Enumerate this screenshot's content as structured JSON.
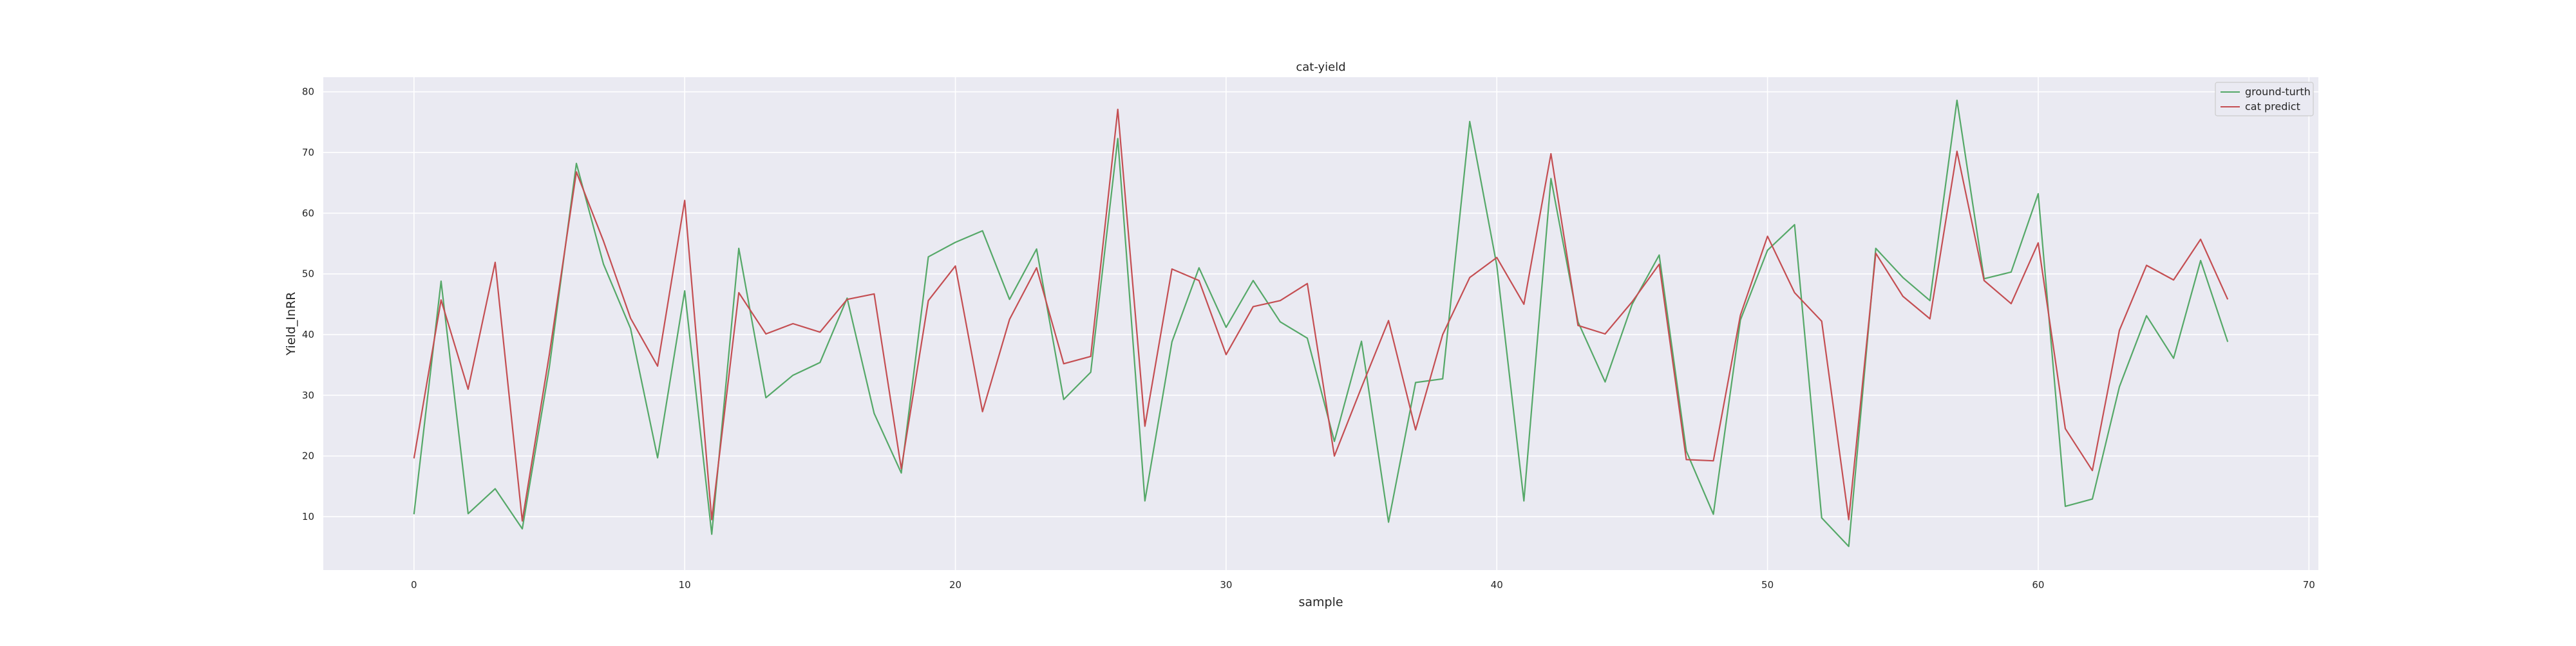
{
  "chart_data": {
    "type": "line",
    "title": "cat-yield",
    "xlabel": "sample",
    "ylabel": "Yield_InRR",
    "xlim": [
      -3.35,
      70.35
    ],
    "ylim": [
      1.2,
      82.4
    ],
    "xticks": [
      0,
      10,
      20,
      30,
      40,
      50,
      60,
      70
    ],
    "yticks": [
      10,
      20,
      30,
      40,
      50,
      60,
      70,
      80
    ],
    "grid": true,
    "legend_position": "top-right",
    "x": [
      0,
      1,
      2,
      3,
      4,
      5,
      6,
      7,
      8,
      9,
      10,
      11,
      12,
      13,
      14,
      15,
      16,
      17,
      18,
      19,
      20,
      21,
      22,
      23,
      24,
      25,
      26,
      27,
      28,
      29,
      30,
      31,
      32,
      33,
      34,
      35,
      36,
      37,
      38,
      39,
      40,
      41,
      42,
      43,
      44,
      45,
      46,
      47,
      48,
      49,
      50,
      51,
      52,
      53,
      54,
      55,
      56,
      57,
      58,
      59,
      60,
      61,
      62,
      63,
      64,
      65,
      66,
      67
    ],
    "series": [
      {
        "name": "ground-turth",
        "color": "#55a868",
        "values": [
          10.4,
          48.8,
          10.5,
          14.6,
          8.0,
          34.6,
          68.2,
          51.6,
          41.0,
          19.7,
          47.2,
          7.1,
          54.2,
          29.6,
          33.3,
          35.4,
          46.0,
          27.0,
          17.2,
          52.8,
          55.2,
          57.1,
          45.8,
          54.1,
          29.3,
          33.8,
          72.3,
          12.6,
          38.8,
          51.0,
          41.2,
          48.9,
          42.1,
          39.4,
          22.4,
          38.9,
          9.1,
          32.1,
          32.7,
          75.1,
          51.4,
          12.6,
          65.7,
          42.1,
          32.2,
          45.0,
          53.1,
          20.8,
          10.4,
          42.4,
          53.9,
          58.1,
          9.8,
          5.1,
          54.2,
          49.4,
          45.6,
          78.6,
          49.2,
          50.3,
          63.2,
          11.7,
          12.9,
          31.4,
          43.1,
          36.1,
          52.2,
          38.8
        ]
      },
      {
        "name": "cat predict",
        "color": "#c44e52",
        "values": [
          19.6,
          45.7,
          31.0,
          51.9,
          9.3,
          36.7,
          66.8,
          55.4,
          42.7,
          34.8,
          62.1,
          9.5,
          46.9,
          40.1,
          41.8,
          40.4,
          45.8,
          46.7,
          17.9,
          45.6,
          51.3,
          27.3,
          42.5,
          51.0,
          35.2,
          36.4,
          77.1,
          24.9,
          50.8,
          48.9,
          36.7,
          44.6,
          45.6,
          48.4,
          20.0,
          31.3,
          42.3,
          24.3,
          40.0,
          49.4,
          52.7,
          45.0,
          69.8,
          41.5,
          40.1,
          45.4,
          51.6,
          19.4,
          19.2,
          43.2,
          56.2,
          46.9,
          42.2,
          9.5,
          53.4,
          46.3,
          42.6,
          70.2,
          48.9,
          45.1,
          55.1,
          24.5,
          17.6,
          40.7,
          51.4,
          49.0,
          55.7,
          45.8
        ]
      }
    ]
  }
}
